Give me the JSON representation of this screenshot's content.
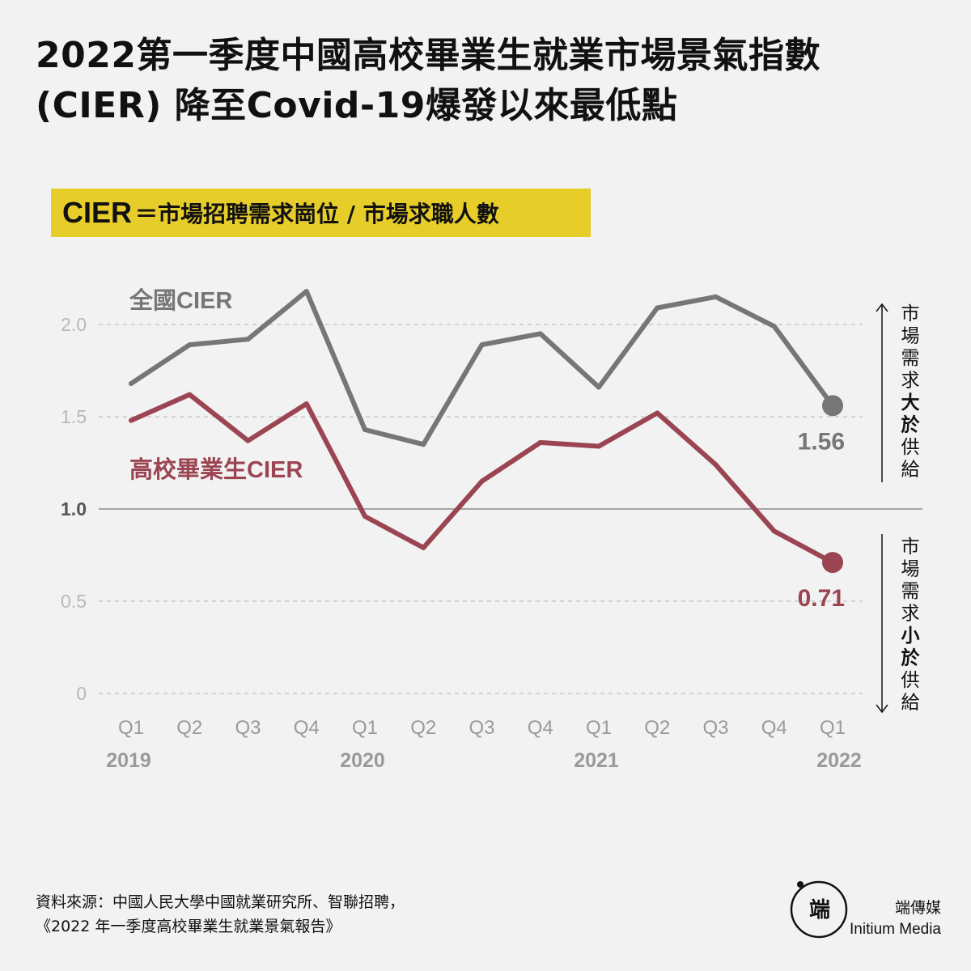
{
  "title": "2022第一季度中國高校畢業生就業市場景氣指數 (CIER) 降至Covid-19爆發以來最低點",
  "formula": {
    "term": "CIER",
    "definition": "＝市場招聘需求崗位 / 市場求職人數"
  },
  "chart_data": {
    "type": "line",
    "categories": [
      "Q1",
      "Q2",
      "Q3",
      "Q4",
      "Q1",
      "Q2",
      "Q3",
      "Q4",
      "Q1",
      "Q2",
      "Q3",
      "Q4",
      "Q1"
    ],
    "years": [
      {
        "label": "2019",
        "index": 0
      },
      {
        "label": "2020",
        "index": 4
      },
      {
        "label": "2021",
        "index": 8
      },
      {
        "label": "2022",
        "index": 12
      }
    ],
    "ylim": [
      0,
      2.2
    ],
    "yticks": [
      {
        "value": 0,
        "label": "0"
      },
      {
        "value": 0.5,
        "label": "0.5"
      },
      {
        "value": 1.0,
        "label": "1.0"
      },
      {
        "value": 1.5,
        "label": "1.5"
      },
      {
        "value": 2.0,
        "label": "2.0"
      }
    ],
    "series": [
      {
        "name": "全國CIER",
        "color": "#767676",
        "values": [
          1.68,
          1.89,
          1.92,
          2.18,
          1.43,
          1.35,
          1.89,
          1.95,
          1.66,
          2.09,
          2.15,
          1.99,
          1.56
        ],
        "end_label": "1.56"
      },
      {
        "name": "高校畢業生CIER",
        "color": "#9b4552",
        "values": [
          1.48,
          1.62,
          1.37,
          1.57,
          0.96,
          0.79,
          1.15,
          1.36,
          1.34,
          1.52,
          1.24,
          0.88,
          0.71
        ],
        "end_label": "0.71"
      }
    ],
    "annotations": {
      "upper": {
        "normal": "市場需求",
        "bold": "大於",
        "tail": "供給"
      },
      "lower": {
        "normal": "市場需求",
        "bold": "小於",
        "tail": "供給"
      }
    }
  },
  "source": {
    "line1": "資料來源：中國人民大學中國就業研究所、智聯招聘，",
    "line2": "《2022 年一季度高校畢業生就業景氣報告》"
  },
  "brand": {
    "logo_icon": "initium-logo-icon",
    "logo_glyph": "端",
    "name_zh": "端傳媒",
    "name_en": "Initium Media"
  }
}
